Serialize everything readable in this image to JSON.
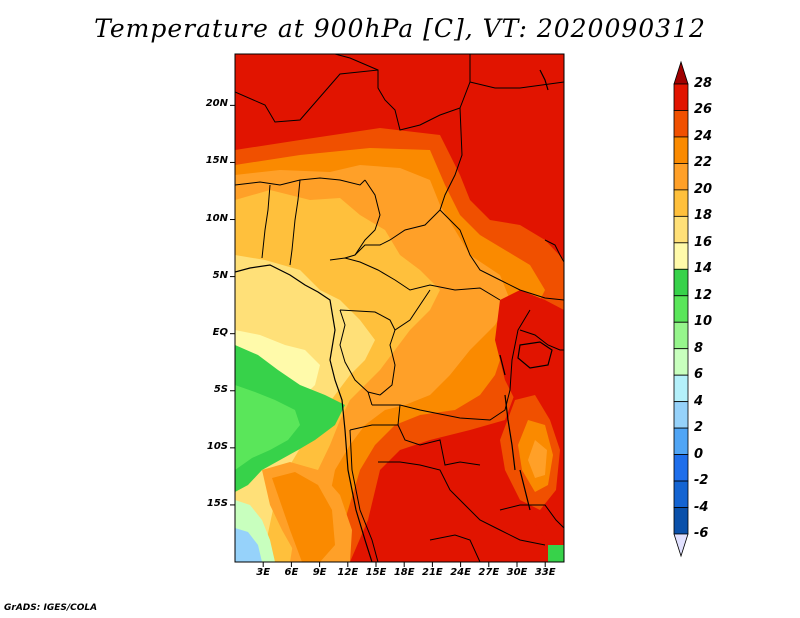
{
  "title": "Temperature at 900hPa [C], VT: 2020090312",
  "credit": "GrADS: IGES/COLA",
  "map": {
    "extent": {
      "lon_min": 0,
      "lon_max": 35,
      "lat_min": -20,
      "lat_max": 24.5
    },
    "lat_labels": [
      "20N",
      "15N",
      "10N",
      "5N",
      "EQ",
      "5S",
      "10S",
      "15S"
    ],
    "lat_values": [
      20,
      15,
      10,
      5,
      0,
      -5,
      -10,
      -15
    ],
    "lon_labels": [
      "3E",
      "6E",
      "9E",
      "12E",
      "15E",
      "18E",
      "21E",
      "24E",
      "27E",
      "30E",
      "33E"
    ],
    "lon_values": [
      3,
      6,
      9,
      12,
      15,
      18,
      21,
      24,
      27,
      30,
      33
    ]
  },
  "colorbar": {
    "labels": [
      "28",
      "26",
      "24",
      "22",
      "20",
      "18",
      "16",
      "14",
      "12",
      "10",
      "8",
      "6",
      "4",
      "2",
      "0",
      "-2",
      "-4",
      "-6"
    ],
    "colors": [
      "#a00000",
      "#e11400",
      "#f05000",
      "#fa8a00",
      "#ffa028",
      "#ffc03c",
      "#ffe078",
      "#fffaaa",
      "#37d24a",
      "#5ae65a",
      "#96f58c",
      "#c8ffbe",
      "#b4f0fa",
      "#96d2fa",
      "#50a5f5",
      "#1e6eeb",
      "#1464d2",
      "#0a50aa",
      "#000082",
      "#e1e1ff"
    ]
  }
}
